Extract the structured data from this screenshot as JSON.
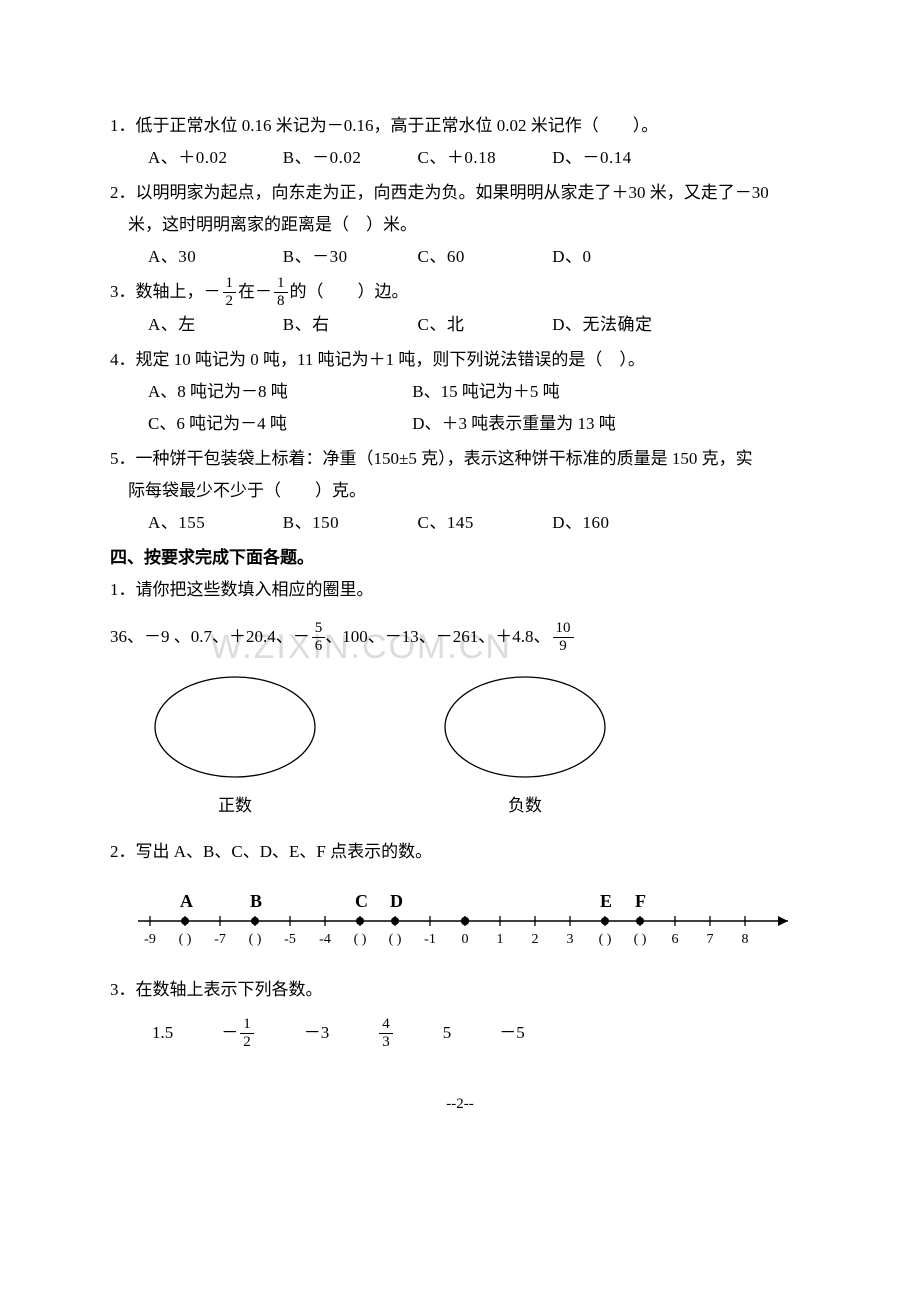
{
  "watermark": "W.ZIXIN.COM.CN",
  "q1": {
    "text": "1．低于正常水位 0.16 米记为－0.16，高于正常水位 0.02 米记作（　　）。",
    "optA": "A、＋0.02",
    "optB": "B、－0.02",
    "optC": "C、＋0.18",
    "optD": "D、－0.14"
  },
  "q2": {
    "text": "2．以明明家为起点，向东走为正，向西走为负。如果明明从家走了＋30 米，又走了－30",
    "text2": "米，这时明明离家的距离是（　）米。",
    "optA": "A、30",
    "optB": "B、－30",
    "optC": "C、60",
    "optD": "D、0"
  },
  "q3": {
    "prefix": "3．数轴上，－",
    "f1n": "1",
    "f1d": "2",
    "mid": "在－",
    "f2n": "1",
    "f2d": "8",
    "suffix": "的（　　）边。",
    "optA": "A、左",
    "optB": "B、右",
    "optC": "C、北",
    "optD": "D、无法确定"
  },
  "q4": {
    "text": "4．规定 10 吨记为 0 吨，11 吨记为＋1 吨，则下列说法错误的是（　）。",
    "optA": "A、8 吨记为－8 吨",
    "optB": "B、15 吨记为＋5 吨",
    "optC": "C、6 吨记为－4 吨",
    "optD": "D、＋3 吨表示重量为 13 吨"
  },
  "q5": {
    "text": "5．一种饼干包装袋上标着：净重（150±5 克），表示这种饼干标准的质量是 150 克，实",
    "text2": "际每袋最少不少于（　　）克。",
    "optA": "A、155",
    "optB": "B、150",
    "optC": "C、145",
    "optD": "D、160"
  },
  "section4": "四、按要求完成下面各题。",
  "s4q1": {
    "text": "1．请你把这些数填入相应的圈里。",
    "nums_a": "36、－9 、0.7、＋20.4、－",
    "f1n": "5",
    "f1d": "6",
    "nums_b": "、100、－13、－261、＋4.8、",
    "f2n": "10",
    "f2d": "9",
    "label_pos": "正数",
    "label_neg": "负数"
  },
  "s4q2": {
    "text": "2．写出 A、B、C、D、E、F 点表示的数。",
    "labels": {
      "A": "A",
      "B": "B",
      "C": "C",
      "D": "D",
      "E": "E",
      "F": "F"
    },
    "ticks": [
      "-9",
      "(  )",
      "-7",
      "(  )",
      "-5",
      "-4",
      "(  )",
      "(  )",
      "-1",
      "0",
      "1",
      "2",
      "3",
      "(  )",
      "(  )",
      "6",
      "7",
      "8"
    ]
  },
  "s4q3": {
    "text": "3．在数轴上表示下列各数。",
    "v1": "1.5",
    "v2_pre": "－",
    "v2n": "1",
    "v2d": "2",
    "v3": "－3",
    "v4n": "4",
    "v4d": "3",
    "v5": "5",
    "v6": "－5"
  },
  "pagenum": "--2--"
}
